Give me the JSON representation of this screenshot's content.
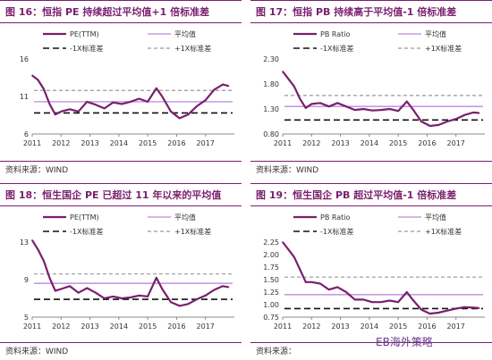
{
  "colors": {
    "accent": "#7a1f6e",
    "main_line": "#7a1f6e",
    "mean_line": "#c79be0",
    "band_lower": "#111111",
    "band_upper": "#999999"
  },
  "panels": [
    {
      "title": "图 16：恒指 PE 持续超过平均值+1 倍标准差",
      "source": "资料来源：WIND"
    },
    {
      "title": "图 17：恒指 PB 持续高于平均值-1 倍标准差",
      "source": "资料来源：WIND"
    },
    {
      "title": "图 18：恒生国企 PE 已超过 11 年以来的平均值",
      "source": "资料来源：WIND"
    },
    {
      "title": "图 19：恒生国企 PB 超过平均值-1 倍标准差",
      "source": "资料来源："
    }
  ],
  "watermark": "EB海外策略",
  "chart_data": [
    {
      "type": "line",
      "legend": [
        "PE(TTM)",
        "平均值",
        "-1X标准差",
        "+1X标准差"
      ],
      "x_ticks": [
        "2011",
        "2012",
        "2013",
        "2014",
        "2015",
        "2016",
        "2017"
      ],
      "y_ticks": [
        "6",
        "11",
        "16"
      ],
      "ylim": [
        6,
        16
      ],
      "series": [
        {
          "name": "PE(TTM)",
          "x": [
            2011.0,
            2011.2,
            2011.4,
            2011.6,
            2011.8,
            2012.0,
            2012.3,
            2012.6,
            2012.9,
            2013.2,
            2013.5,
            2013.8,
            2014.1,
            2014.4,
            2014.7,
            2015.0,
            2015.3,
            2015.5,
            2015.8,
            2016.1,
            2016.4,
            2016.7,
            2017.0,
            2017.3,
            2017.6,
            2017.8
          ],
          "y": [
            13.8,
            13.2,
            12.0,
            10.0,
            8.6,
            9.0,
            9.3,
            9.0,
            10.3,
            9.9,
            9.4,
            10.2,
            10.0,
            10.3,
            10.7,
            10.3,
            12.1,
            11.0,
            9.0,
            8.1,
            8.6,
            9.7,
            10.5,
            11.9,
            12.6,
            12.4
          ]
        },
        {
          "name": "平均值",
          "value": 10.3
        },
        {
          "name": "-1X标准差",
          "value": 8.8
        },
        {
          "name": "+1X标准差",
          "value": 11.8
        }
      ]
    },
    {
      "type": "line",
      "legend": [
        "PB Ratio",
        "平均值",
        "-1X标准差",
        "+1X标准差"
      ],
      "x_ticks": [
        "2011",
        "2012",
        "2013",
        "2014",
        "2015",
        "2016",
        "2017"
      ],
      "y_ticks": [
        "0.80",
        "1.30",
        "1.80",
        "2.30"
      ],
      "ylim": [
        0.8,
        2.3
      ],
      "series": [
        {
          "name": "PB Ratio",
          "x": [
            2011.0,
            2011.2,
            2011.4,
            2011.6,
            2011.8,
            2012.0,
            2012.3,
            2012.6,
            2012.9,
            2013.2,
            2013.5,
            2013.8,
            2014.1,
            2014.4,
            2014.7,
            2015.0,
            2015.3,
            2015.5,
            2015.8,
            2016.1,
            2016.4,
            2016.7,
            2017.0,
            2017.3,
            2017.6,
            2017.8
          ],
          "y": [
            2.05,
            1.9,
            1.75,
            1.5,
            1.32,
            1.4,
            1.42,
            1.35,
            1.42,
            1.35,
            1.28,
            1.3,
            1.27,
            1.28,
            1.3,
            1.26,
            1.45,
            1.3,
            1.05,
            0.96,
            0.98,
            1.05,
            1.1,
            1.18,
            1.23,
            1.22
          ]
        },
        {
          "name": "平均值",
          "value": 1.35
        },
        {
          "name": "-1X标准差",
          "value": 1.08
        },
        {
          "name": "+1X标准差",
          "value": 1.57
        }
      ]
    },
    {
      "type": "line",
      "legend": [
        "PE(TTM)",
        "平均值",
        "-1X标准差",
        "+1X标准差"
      ],
      "x_ticks": [
        "2011",
        "2012",
        "2013",
        "2014",
        "2015",
        "2016",
        "2017"
      ],
      "y_ticks": [
        "5",
        "9",
        "13"
      ],
      "ylim": [
        5,
        13
      ],
      "series": [
        {
          "name": "PE(TTM)",
          "x": [
            2011.0,
            2011.2,
            2011.4,
            2011.6,
            2011.8,
            2012.0,
            2012.3,
            2012.6,
            2012.9,
            2013.2,
            2013.5,
            2013.8,
            2014.1,
            2014.4,
            2014.7,
            2015.0,
            2015.3,
            2015.5,
            2015.8,
            2016.1,
            2016.4,
            2016.7,
            2017.0,
            2017.3,
            2017.6,
            2017.8
          ],
          "y": [
            13.2,
            12.2,
            11.0,
            9.2,
            7.8,
            8.0,
            8.3,
            7.6,
            8.1,
            7.6,
            7.0,
            7.2,
            7.0,
            7.1,
            7.3,
            7.2,
            9.2,
            8.0,
            6.6,
            6.2,
            6.4,
            6.9,
            7.3,
            7.9,
            8.3,
            8.2
          ]
        },
        {
          "name": "平均值",
          "value": 8.6
        },
        {
          "name": "-1X标准差",
          "value": 6.9
        },
        {
          "name": "+1X标准差",
          "value": 9.6
        }
      ]
    },
    {
      "type": "line",
      "legend": [
        "PB Ratio",
        "平均值",
        "-1X标准差",
        "+1X标准差"
      ],
      "x_ticks": [
        "2011",
        "2012",
        "2013",
        "2014",
        "2015",
        "2016",
        "2017"
      ],
      "y_ticks": [
        "0.75",
        "1.00",
        "1.25",
        "1.50",
        "1.75",
        "2.00",
        "2.25"
      ],
      "ylim": [
        0.75,
        2.25
      ],
      "series": [
        {
          "name": "PB Ratio",
          "x": [
            2011.0,
            2011.2,
            2011.4,
            2011.6,
            2011.8,
            2012.0,
            2012.3,
            2012.6,
            2012.9,
            2013.2,
            2013.5,
            2013.8,
            2014.1,
            2014.4,
            2014.7,
            2015.0,
            2015.3,
            2015.5,
            2015.8,
            2016.1,
            2016.4,
            2016.7,
            2017.0,
            2017.3,
            2017.6,
            2017.8
          ],
          "y": [
            2.25,
            2.1,
            1.95,
            1.7,
            1.45,
            1.45,
            1.42,
            1.3,
            1.35,
            1.25,
            1.1,
            1.1,
            1.05,
            1.05,
            1.08,
            1.05,
            1.25,
            1.1,
            0.9,
            0.82,
            0.84,
            0.88,
            0.92,
            0.95,
            0.94,
            0.93
          ]
        },
        {
          "name": "平均值",
          "value": 1.2
        },
        {
          "name": "-1X标准差",
          "value": 0.92
        },
        {
          "name": "+1X标准差",
          "value": 1.55
        }
      ]
    }
  ]
}
